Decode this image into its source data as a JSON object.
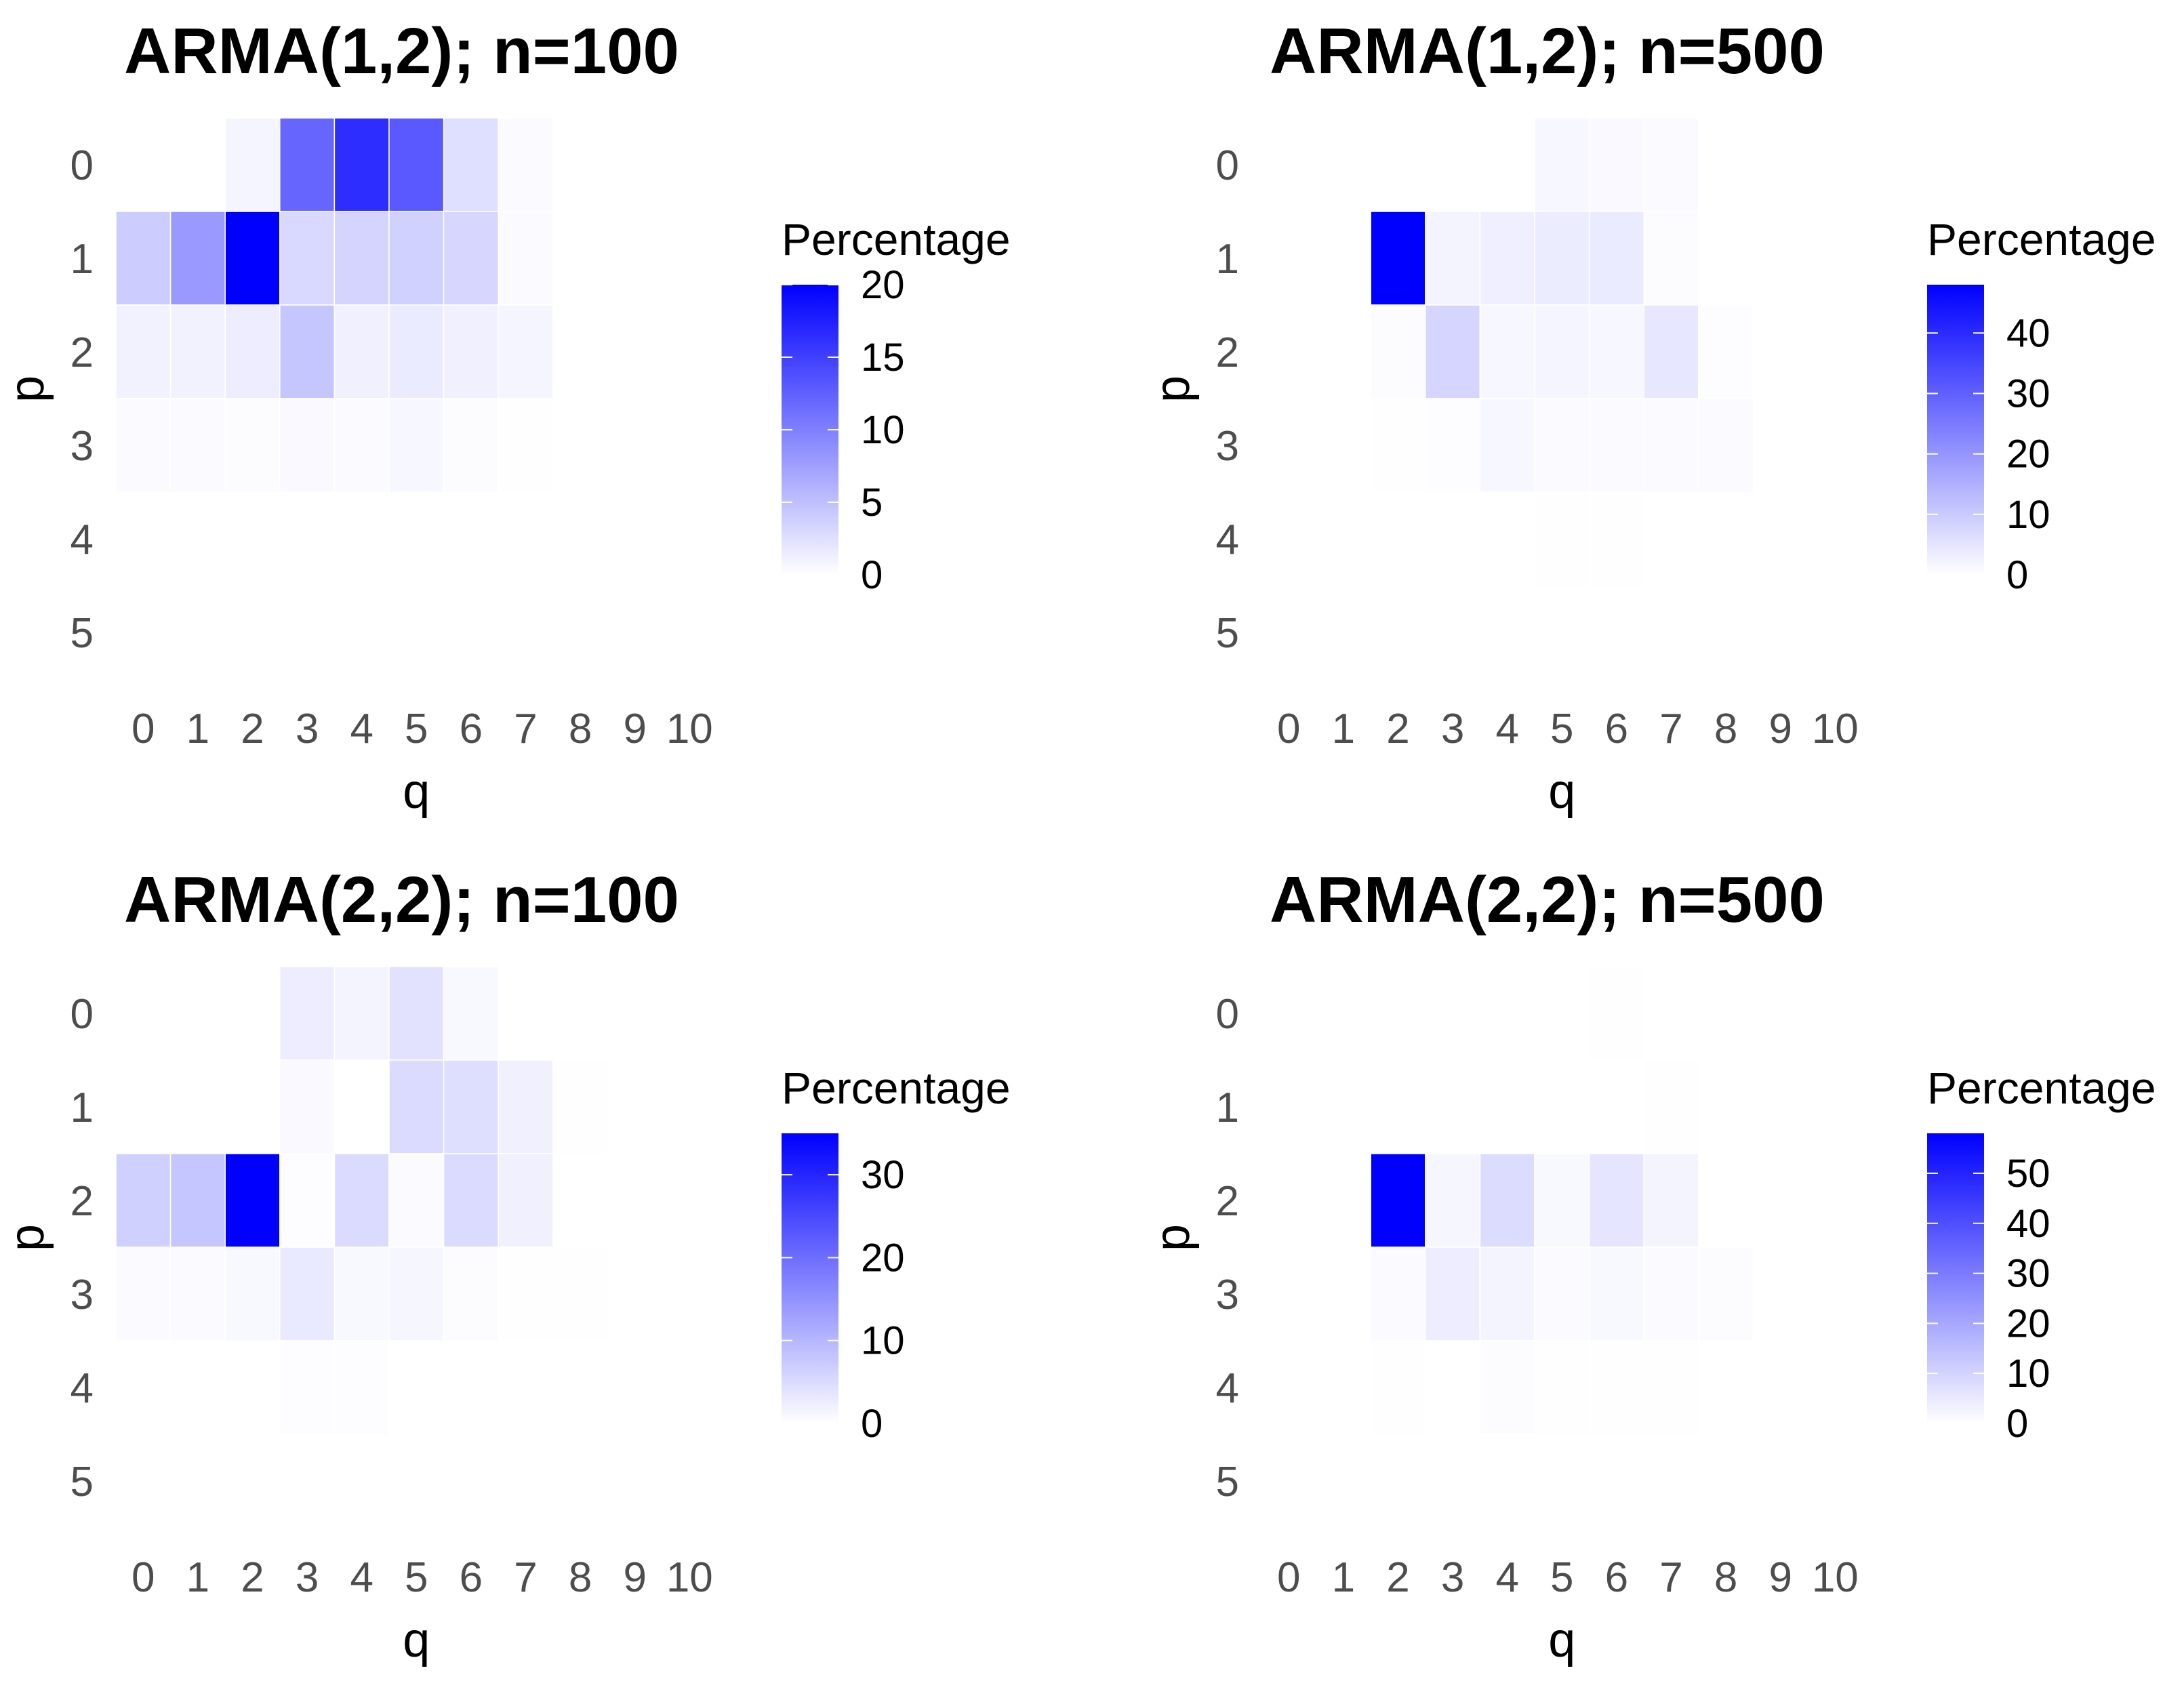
{
  "chart_data": [
    {
      "type": "heatmap",
      "title": "ARMA(1,2); n=100",
      "xlabel": "q",
      "ylabel": "p",
      "x_categories": [
        "0",
        "1",
        "2",
        "3",
        "4",
        "5",
        "6",
        "7",
        "8",
        "9",
        "10"
      ],
      "y_categories": [
        "0",
        "1",
        "2",
        "3",
        "4",
        "5"
      ],
      "legend_title": "Percentage",
      "color_low": "#ffffff",
      "color_high": "#0000ff",
      "scale_min": 0,
      "scale_max": 20,
      "legend_ticks": [
        0,
        5,
        10,
        15,
        20
      ],
      "legend_tick_labels": [
        "0",
        "5",
        "10",
        "15",
        "20"
      ],
      "values": [
        [
          0,
          0,
          0.8,
          12,
          16.5,
          13,
          2.5,
          0.4,
          0,
          0,
          0
        ],
        [
          4,
          8,
          20,
          3,
          3.4,
          3.6,
          3.2,
          0.3,
          0,
          0,
          0
        ],
        [
          1,
          1,
          1.4,
          4.5,
          1.2,
          1.6,
          1.2,
          0.8,
          0,
          0,
          0
        ],
        [
          0.3,
          0.3,
          0.2,
          0.5,
          0.4,
          0.6,
          0.2,
          0.1,
          0,
          0,
          0
        ],
        [
          0,
          0,
          0,
          0,
          0,
          0,
          0,
          0,
          0,
          0,
          0
        ],
        [
          0,
          0,
          0,
          0,
          0,
          0,
          0,
          0,
          0,
          0,
          0
        ]
      ]
    },
    {
      "type": "heatmap",
      "title": "ARMA(1,2); n=500",
      "xlabel": "q",
      "ylabel": "p",
      "x_categories": [
        "0",
        "1",
        "2",
        "3",
        "4",
        "5",
        "6",
        "7",
        "8",
        "9",
        "10"
      ],
      "y_categories": [
        "0",
        "1",
        "2",
        "3",
        "4",
        "5"
      ],
      "legend_title": "Percentage",
      "color_low": "#ffffff",
      "color_high": "#0000ff",
      "scale_min": 0,
      "scale_max": 48,
      "legend_ticks": [
        0,
        10,
        20,
        30,
        40
      ],
      "legend_tick_labels": [
        "0",
        "10",
        "20",
        "30",
        "40"
      ],
      "values": [
        [
          0,
          0,
          0,
          0,
          0,
          1.5,
          1.2,
          0.8,
          0,
          0,
          0
        ],
        [
          0,
          0,
          48,
          2,
          3,
          3.5,
          3.8,
          0.5,
          0,
          0,
          0
        ],
        [
          0,
          0,
          0.6,
          8,
          1.5,
          1.8,
          1.5,
          4.5,
          0.3,
          0,
          0
        ],
        [
          0,
          0,
          0.2,
          0.3,
          1.6,
          0.9,
          0.9,
          0.9,
          1.0,
          0,
          0
        ],
        [
          0,
          0,
          0,
          0,
          0,
          0.2,
          0.2,
          0,
          0,
          0,
          0
        ],
        [
          0,
          0,
          0,
          0,
          0,
          0,
          0,
          0,
          0,
          0,
          0
        ]
      ]
    },
    {
      "type": "heatmap",
      "title": "ARMA(2,2); n=100",
      "xlabel": "q",
      "ylabel": "p",
      "x_categories": [
        "0",
        "1",
        "2",
        "3",
        "4",
        "5",
        "6",
        "7",
        "8",
        "9",
        "10"
      ],
      "y_categories": [
        "0",
        "1",
        "2",
        "3",
        "4",
        "5"
      ],
      "legend_title": "Percentage",
      "color_low": "#ffffff",
      "color_high": "#0000ff",
      "scale_min": 0,
      "scale_max": 35,
      "legend_ticks": [
        0,
        10,
        20,
        30
      ],
      "legend_tick_labels": [
        "0",
        "10",
        "20",
        "30"
      ],
      "values": [
        [
          0,
          0,
          0,
          2.5,
          1.5,
          4,
          1,
          0,
          0,
          0,
          0
        ],
        [
          0,
          0,
          0,
          0.8,
          0,
          5,
          4.5,
          2,
          0.2,
          0,
          0
        ],
        [
          6.5,
          8,
          35,
          0.3,
          5,
          0.6,
          5,
          2,
          0,
          0,
          0
        ],
        [
          0.5,
          0.5,
          1,
          3,
          1,
          1.2,
          0.4,
          0.2,
          0.1,
          0,
          0
        ],
        [
          0,
          0,
          0,
          0.3,
          0.3,
          0,
          0,
          0,
          0,
          0,
          0
        ],
        [
          0,
          0,
          0,
          0,
          0,
          0,
          0,
          0,
          0,
          0,
          0
        ]
      ]
    },
    {
      "type": "heatmap",
      "title": "ARMA(2,2); n=500",
      "xlabel": "q",
      "ylabel": "p",
      "x_categories": [
        "0",
        "1",
        "2",
        "3",
        "4",
        "5",
        "6",
        "7",
        "8",
        "9",
        "10"
      ],
      "y_categories": [
        "0",
        "1",
        "2",
        "3",
        "4",
        "5"
      ],
      "legend_title": "Percentage",
      "color_low": "#ffffff",
      "color_high": "#0000ff",
      "scale_min": 0,
      "scale_max": 58,
      "legend_ticks": [
        0,
        10,
        20,
        30,
        40,
        50
      ],
      "legend_tick_labels": [
        "0",
        "10",
        "20",
        "30",
        "40",
        "50"
      ],
      "values": [
        [
          0,
          0,
          0,
          0,
          0,
          0,
          0.3,
          0,
          0,
          0,
          0
        ],
        [
          0,
          0,
          0,
          0,
          0,
          0,
          0,
          0.3,
          0,
          0,
          0
        ],
        [
          0,
          0,
          58,
          2,
          8,
          1.5,
          6,
          2.5,
          0,
          0,
          0
        ],
        [
          0,
          0,
          1,
          4,
          2.5,
          1.2,
          1.5,
          0.8,
          0.7,
          0,
          0
        ],
        [
          0,
          0,
          0.3,
          0,
          0.6,
          0.2,
          0.2,
          0.2,
          0,
          0,
          0
        ],
        [
          0,
          0,
          0,
          0,
          0,
          0,
          0,
          0,
          0,
          0,
          0
        ]
      ]
    }
  ]
}
